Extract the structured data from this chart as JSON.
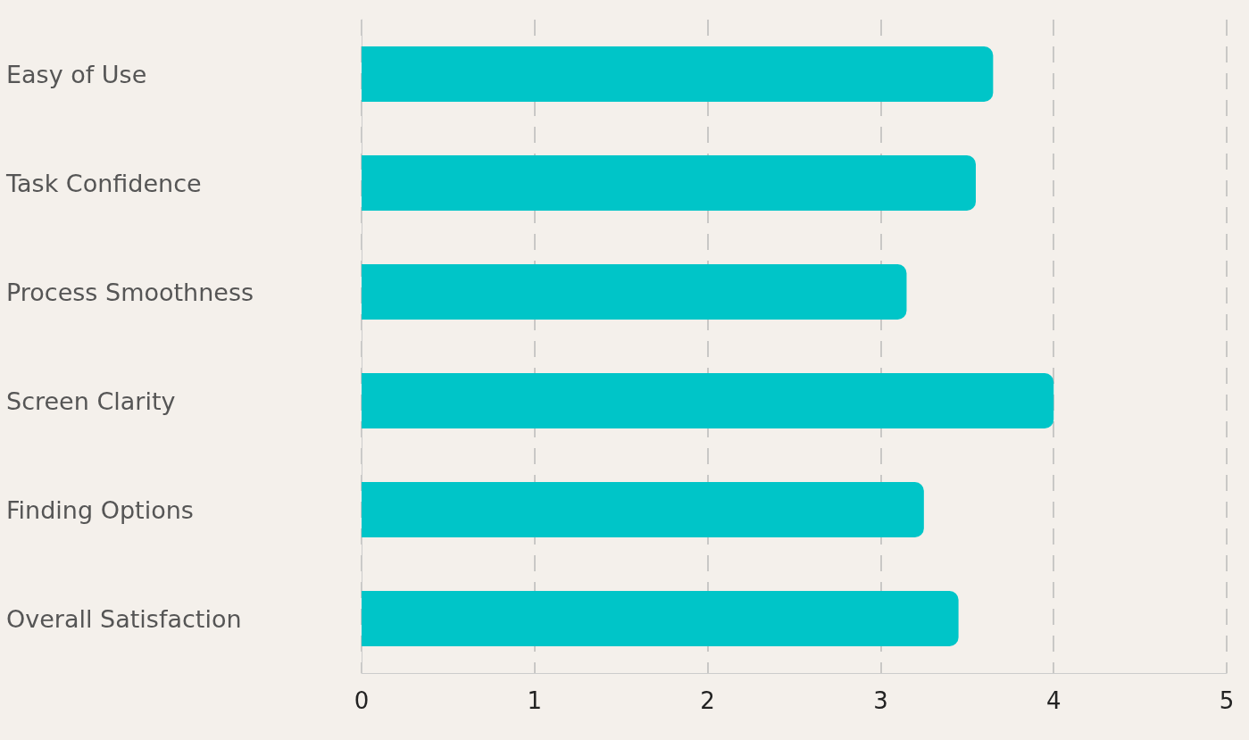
{
  "chart_data": {
    "type": "bar",
    "orientation": "horizontal",
    "categories": [
      "Easy of Use",
      "Task Confidence",
      "Process Smoothness",
      "Screen Clarity",
      "Finding Options",
      "Overall Satisfaction"
    ],
    "values": [
      3.65,
      3.55,
      3.15,
      4.0,
      3.25,
      3.45
    ],
    "color": "#00c5c8",
    "xlim": [
      0,
      5
    ],
    "xticks": [
      0,
      1,
      2,
      3,
      4,
      5
    ],
    "grid": "x"
  }
}
